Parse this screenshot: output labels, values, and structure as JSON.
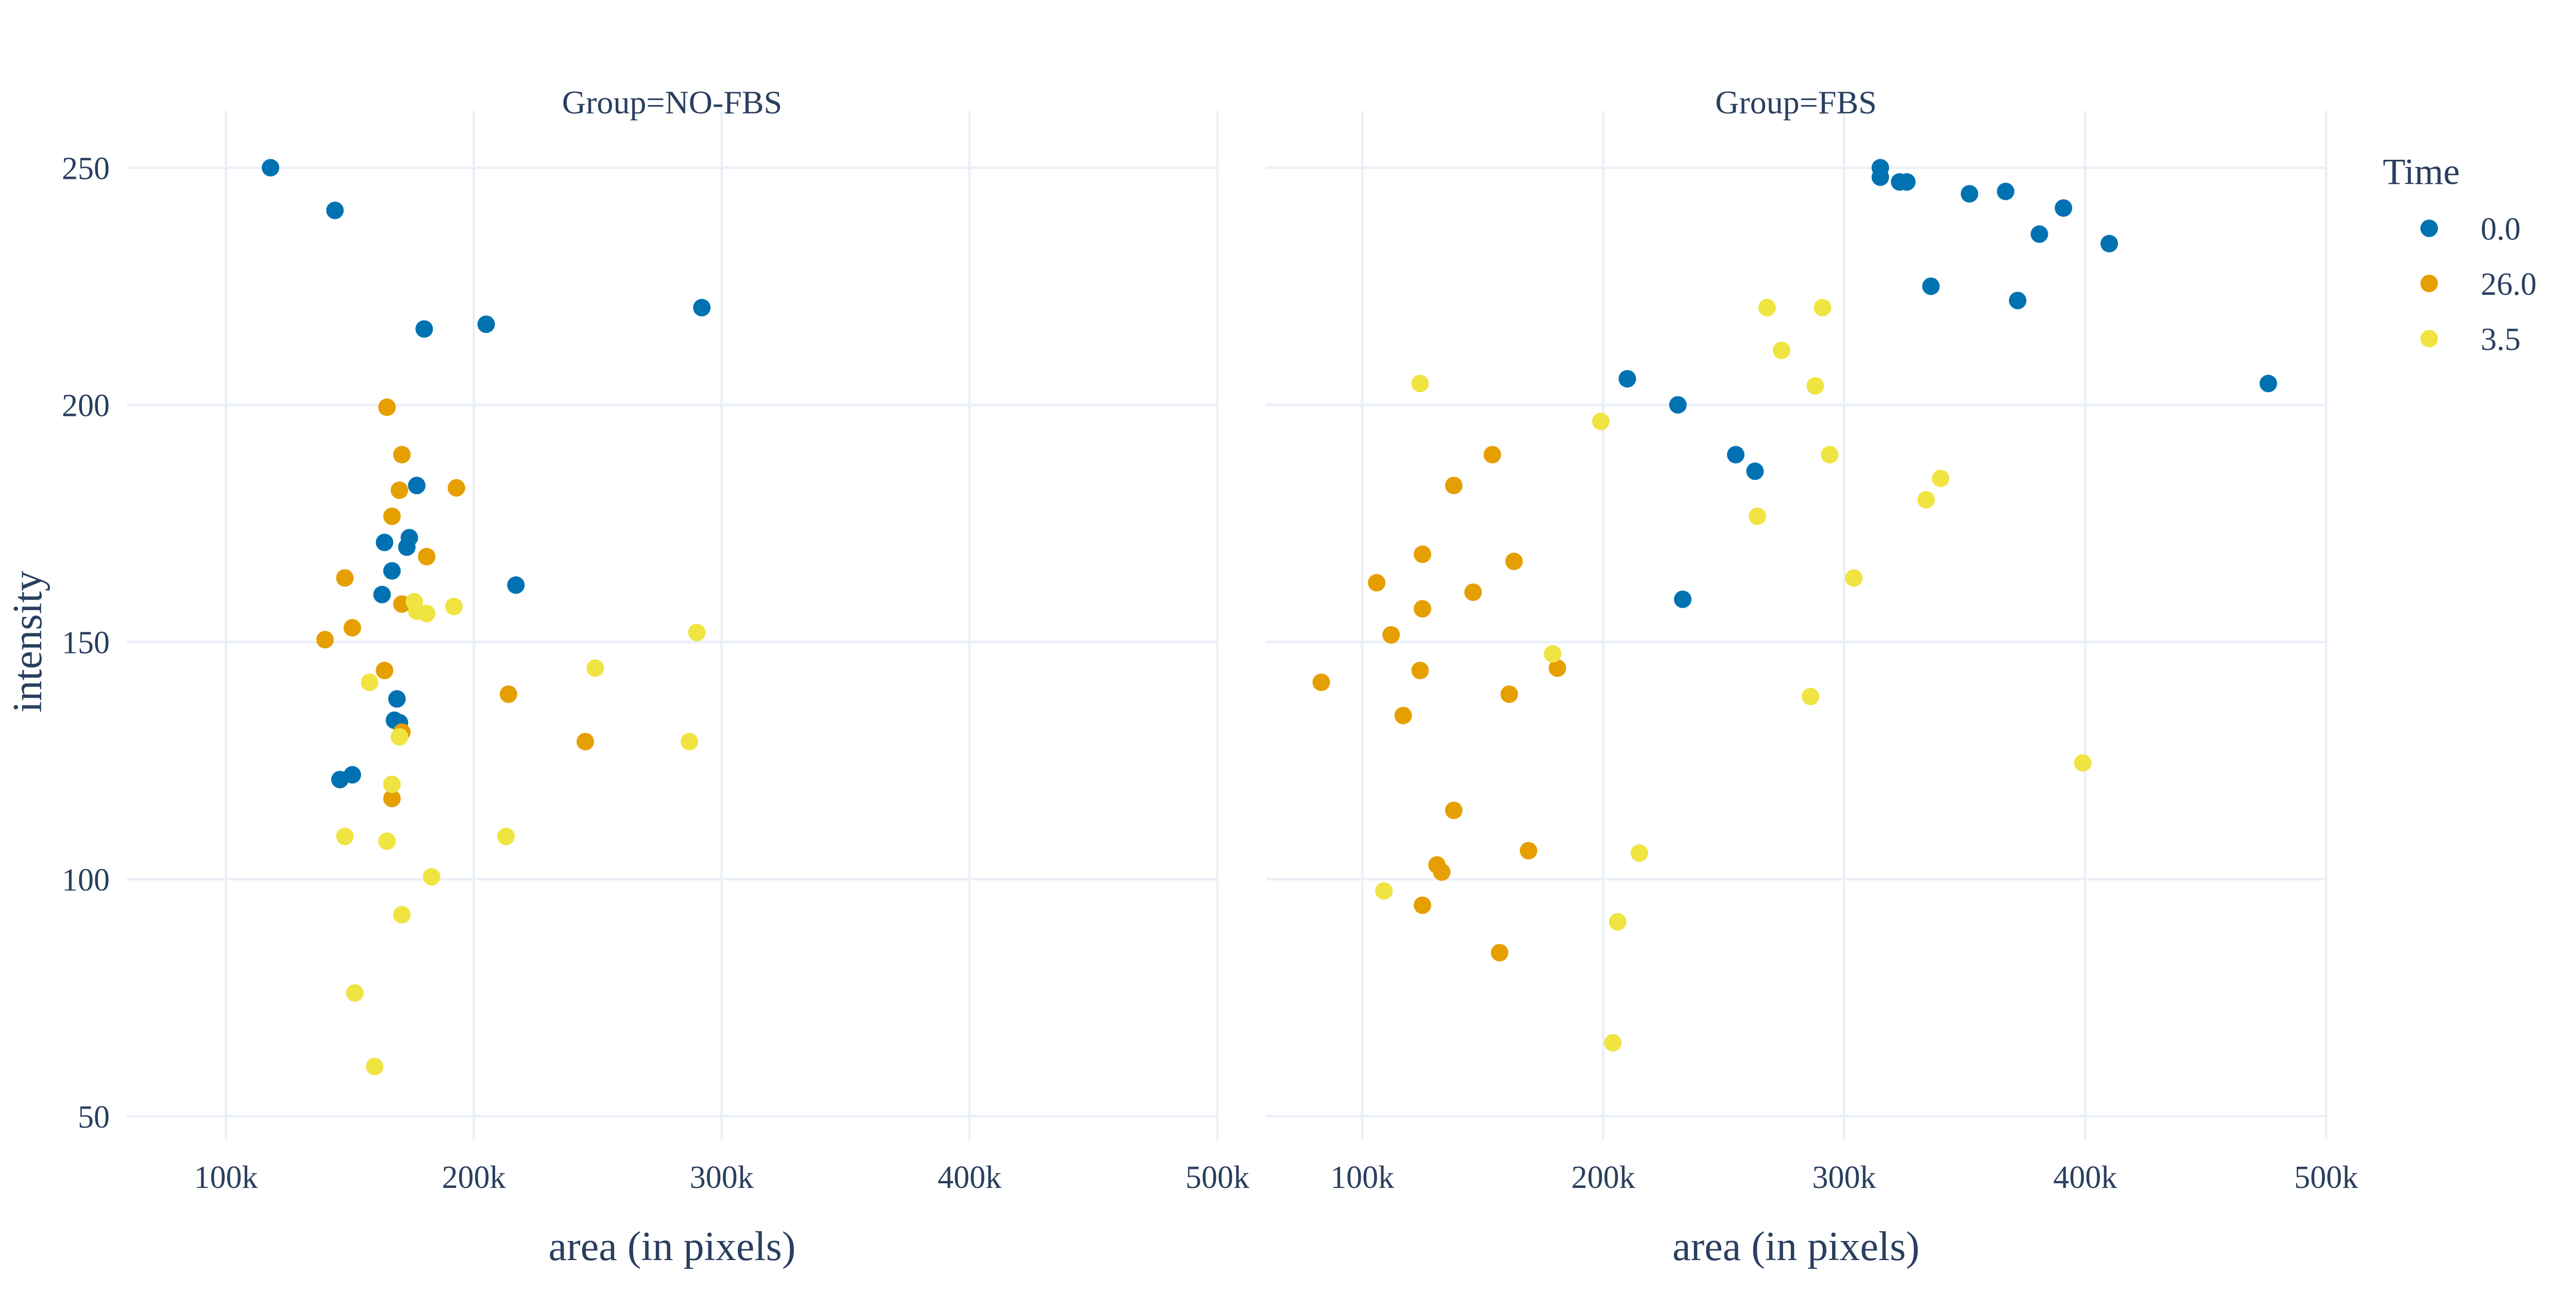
{
  "chart_data": {
    "type": "scatter",
    "facet_label": "Group",
    "xlabel": "area (in pixels)",
    "ylabel": "intensity",
    "xlim": [
      60000,
      500000
    ],
    "ylim": [
      45,
      262
    ],
    "x_ticks": [
      100000,
      200000,
      300000,
      400000,
      500000
    ],
    "x_tick_labels": [
      "100k",
      "200k",
      "300k",
      "400k",
      "500k"
    ],
    "y_ticks": [
      50,
      100,
      150,
      200,
      250
    ],
    "y_tick_labels": [
      "50",
      "100",
      "150",
      "200",
      "250"
    ],
    "grid": true,
    "legend": {
      "title": "Time",
      "placement": "top-right",
      "entries": [
        {
          "label": "0.0",
          "color": "#0072B2"
        },
        {
          "label": "26.0",
          "color": "#E69F00"
        },
        {
          "label": "3.5",
          "color": "#F0E442"
        }
      ]
    },
    "panels": [
      {
        "title": "Group=NO-FBS",
        "series": [
          {
            "name": "0.0",
            "color": "#0072B2",
            "points": [
              [
                118000,
                250
              ],
              [
                144000,
                241
              ],
              [
                180000,
                216
              ],
              [
                205000,
                217
              ],
              [
                292000,
                220.5
              ],
              [
                177000,
                183
              ],
              [
                174000,
                172
              ],
              [
                173000,
                170
              ],
              [
                164000,
                171
              ],
              [
                167000,
                165
              ],
              [
                163000,
                160
              ],
              [
                217000,
                162
              ],
              [
                169000,
                138
              ],
              [
                168000,
                133.5
              ],
              [
                170000,
                133
              ],
              [
                146000,
                121
              ],
              [
                151000,
                122
              ]
            ]
          },
          {
            "name": "26.0",
            "color": "#E69F00",
            "points": [
              [
                165000,
                199.5
              ],
              [
                171000,
                189.5
              ],
              [
                170000,
                182
              ],
              [
                193000,
                182.5
              ],
              [
                167000,
                176.5
              ],
              [
                181000,
                168
              ],
              [
                148000,
                163.5
              ],
              [
                171000,
                158
              ],
              [
                151000,
                153
              ],
              [
                140000,
                150.5
              ],
              [
                164000,
                144
              ],
              [
                214000,
                139
              ],
              [
                171000,
                131
              ],
              [
                245000,
                129
              ],
              [
                167000,
                117
              ]
            ]
          },
          {
            "name": "3.5",
            "color": "#F0E442",
            "points": [
              [
                176000,
                158.5
              ],
              [
                192000,
                157.5
              ],
              [
                177000,
                156.5
              ],
              [
                181000,
                156
              ],
              [
                290000,
                152
              ],
              [
                249000,
                144.5
              ],
              [
                158000,
                141.5
              ],
              [
                170000,
                130
              ],
              [
                287000,
                129
              ],
              [
                167000,
                120
              ],
              [
                148000,
                109
              ],
              [
                213000,
                109
              ],
              [
                165000,
                108
              ],
              [
                183000,
                100.5
              ],
              [
                171000,
                92.5
              ],
              [
                152000,
                76
              ],
              [
                160000,
                60.5
              ]
            ]
          }
        ]
      },
      {
        "title": "Group=FBS",
        "series": [
          {
            "name": "0.0",
            "color": "#0072B2",
            "points": [
              [
                315000,
                250
              ],
              [
                315000,
                248
              ],
              [
                323000,
                247
              ],
              [
                326000,
                247
              ],
              [
                352000,
                244.5
              ],
              [
                367000,
                245
              ],
              [
                391000,
                241.5
              ],
              [
                381000,
                236
              ],
              [
                410000,
                234
              ],
              [
                336000,
                225
              ],
              [
                372000,
                222
              ],
              [
                210000,
                205.5
              ],
              [
                476000,
                204.5
              ],
              [
                231000,
                200
              ],
              [
                255000,
                189.5
              ],
              [
                263000,
                186
              ],
              [
                233000,
                159
              ]
            ]
          },
          {
            "name": "26.0",
            "color": "#E69F00",
            "points": [
              [
                154000,
                189.5
              ],
              [
                138000,
                183
              ],
              [
                125000,
                168.5
              ],
              [
                163000,
                167
              ],
              [
                106000,
                162.5
              ],
              [
                125000,
                157
              ],
              [
                146000,
                160.5
              ],
              [
                112000,
                151.5
              ],
              [
                124000,
                144
              ],
              [
                181000,
                144.5
              ],
              [
                161000,
                139
              ],
              [
                117000,
                134.5
              ],
              [
                83000,
                141.5
              ],
              [
                138000,
                114.5
              ],
              [
                169000,
                106
              ],
              [
                131000,
                103
              ],
              [
                133000,
                101.5
              ],
              [
                125000,
                94.5
              ],
              [
                157000,
                84.5
              ]
            ]
          },
          {
            "name": "3.5",
            "color": "#F0E442",
            "points": [
              [
                268000,
                220.5
              ],
              [
                291000,
                220.5
              ],
              [
                274000,
                211.5
              ],
              [
                124000,
                204.5
              ],
              [
                288000,
                204
              ],
              [
                199000,
                196.5
              ],
              [
                294000,
                189.5
              ],
              [
                340000,
                184.5
              ],
              [
                334000,
                180
              ],
              [
                264000,
                176.5
              ],
              [
                304000,
                163.5
              ],
              [
                179000,
                147.5
              ],
              [
                286000,
                138.5
              ],
              [
                399000,
                124.5
              ],
              [
                215000,
                105.5
              ],
              [
                109000,
                97.5
              ],
              [
                206000,
                91
              ],
              [
                204000,
                65.5
              ]
            ]
          }
        ]
      }
    ]
  }
}
